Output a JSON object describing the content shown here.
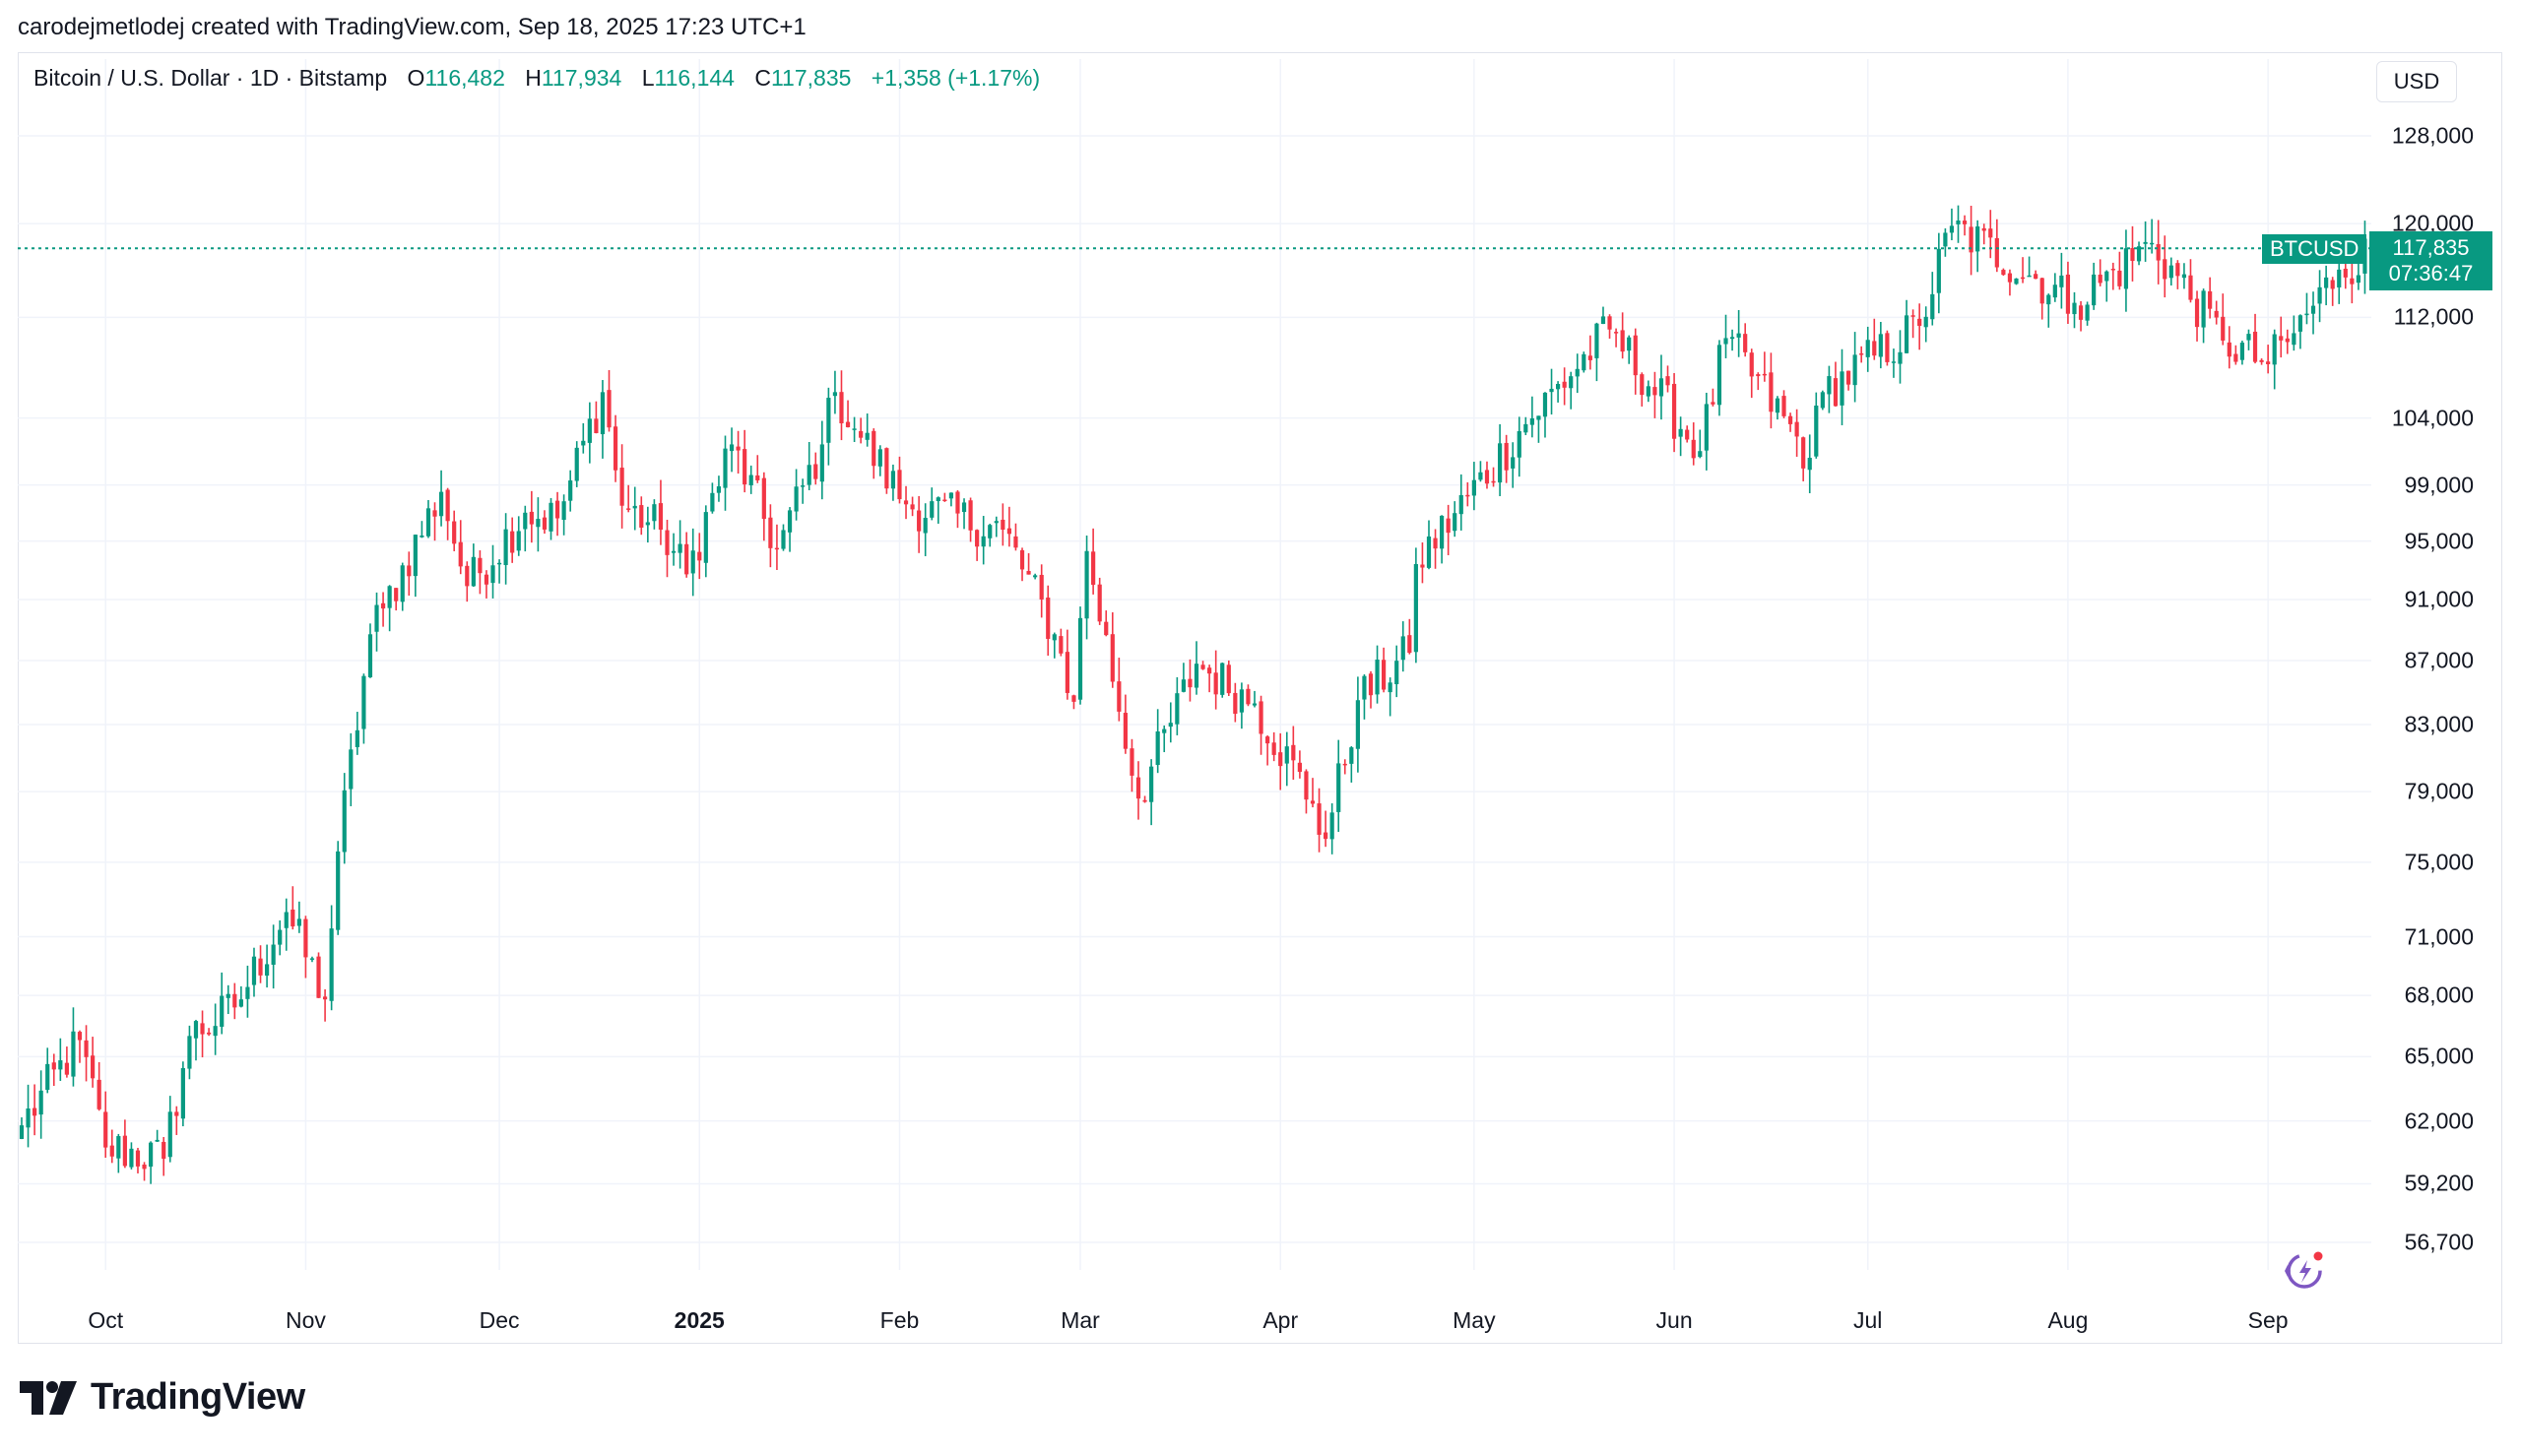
{
  "header": {
    "credit": "carodejmetlodej created with TradingView.com, Sep 18, 2025 17:23 UTC+1"
  },
  "legend": {
    "symbol": "Bitcoin / U.S. Dollar · 1D · Bitstamp",
    "o_label": "O",
    "o_value": "116,482",
    "h_label": "H",
    "h_value": "117,934",
    "l_label": "L",
    "l_value": "116,144",
    "c_label": "C",
    "c_value": "117,835",
    "change": "+1,358 (+1.17%)"
  },
  "currency_button": "USD",
  "last_price": {
    "symbol_tag": "BTCUSD",
    "price": "117,835",
    "countdown": "07:36:47"
  },
  "brand": {
    "name": "TradingView",
    "logo_icon": "tradingview-logo-icon"
  },
  "colors": {
    "up": "#089981",
    "down": "#f23645",
    "grid": "#f0f3fa",
    "price_line": "#089981",
    "assistant": "#7e57c2"
  },
  "chart_data": {
    "type": "candlestick",
    "symbol": "BTCUSD",
    "interval": "1D",
    "y_scale": "log",
    "ylim": [
      55000,
      135000
    ],
    "grid": true,
    "y_ticks": [
      128000,
      120000,
      112000,
      104000,
      99000,
      95000,
      91000,
      87000,
      83000,
      79000,
      75000,
      71000,
      68000,
      65000,
      62000,
      59200,
      56700
    ],
    "y_tick_labels": [
      "128,000",
      "120,000",
      "112,000",
      "104,000",
      "99,000",
      "95,000",
      "91,000",
      "87,000",
      "83,000",
      "79,000",
      "75,000",
      "71,000",
      "68,000",
      "65,000",
      "62,000",
      "59,200",
      "56,700"
    ],
    "x_ticks": [
      {
        "label": "Oct",
        "date": "2024-10-01",
        "bold": false
      },
      {
        "label": "Nov",
        "date": "2024-11-01",
        "bold": false
      },
      {
        "label": "Dec",
        "date": "2024-12-01",
        "bold": false
      },
      {
        "label": "2025",
        "date": "2025-01-01",
        "bold": true
      },
      {
        "label": "Feb",
        "date": "2025-02-01",
        "bold": false
      },
      {
        "label": "Mar",
        "date": "2025-03-01",
        "bold": false
      },
      {
        "label": "Apr",
        "date": "2025-04-01",
        "bold": false
      },
      {
        "label": "May",
        "date": "2025-05-01",
        "bold": false
      },
      {
        "label": "Jun",
        "date": "2025-06-01",
        "bold": false
      },
      {
        "label": "Jul",
        "date": "2025-07-01",
        "bold": false
      },
      {
        "label": "Aug",
        "date": "2025-08-01",
        "bold": false
      },
      {
        "label": "Sep",
        "date": "2025-09-01",
        "bold": false
      }
    ],
    "start_date": "2024-09-18",
    "closes": [
      {
        "date": "2024-09-18",
        "close": 61800
      },
      {
        "date": "2024-09-27",
        "close": 65800
      },
      {
        "date": "2024-10-01",
        "close": 60800
      },
      {
        "date": "2024-10-10",
        "close": 60300
      },
      {
        "date": "2024-10-14",
        "close": 66000
      },
      {
        "date": "2024-10-21",
        "close": 67400
      },
      {
        "date": "2024-10-29",
        "close": 72300
      },
      {
        "date": "2024-11-04",
        "close": 67800
      },
      {
        "date": "2024-11-06",
        "close": 75600
      },
      {
        "date": "2024-11-11",
        "close": 88700
      },
      {
        "date": "2024-11-13",
        "close": 90400
      },
      {
        "date": "2024-11-22",
        "close": 98500
      },
      {
        "date": "2024-11-26",
        "close": 91900
      },
      {
        "date": "2024-12-05",
        "close": 97000
      },
      {
        "date": "2024-12-10",
        "close": 96600
      },
      {
        "date": "2024-12-17",
        "close": 106000
      },
      {
        "date": "2024-12-20",
        "close": 97500
      },
      {
        "date": "2024-12-26",
        "close": 95800
      },
      {
        "date": "2024-12-30",
        "close": 92700
      },
      {
        "date": "2025-01-06",
        "close": 102000
      },
      {
        "date": "2025-01-13",
        "close": 94500
      },
      {
        "date": "2025-01-20",
        "close": 102000
      },
      {
        "date": "2025-01-22",
        "close": 106000
      },
      {
        "date": "2025-01-26",
        "close": 102500
      },
      {
        "date": "2025-02-02",
        "close": 97600
      },
      {
        "date": "2025-02-17",
        "close": 95800
      },
      {
        "date": "2025-02-25",
        "close": 88700
      },
      {
        "date": "2025-02-28",
        "close": 84400
      },
      {
        "date": "2025-03-02",
        "close": 94300
      },
      {
        "date": "2025-03-10",
        "close": 78600
      },
      {
        "date": "2025-03-19",
        "close": 86800
      },
      {
        "date": "2025-03-28",
        "close": 84300
      },
      {
        "date": "2025-04-06",
        "close": 78300
      },
      {
        "date": "2025-04-08",
        "close": 76300
      },
      {
        "date": "2025-04-13",
        "close": 84500
      },
      {
        "date": "2025-04-21",
        "close": 87500
      },
      {
        "date": "2025-04-22",
        "close": 93400
      },
      {
        "date": "2025-05-08",
        "close": 103000
      },
      {
        "date": "2025-05-22",
        "close": 111000
      },
      {
        "date": "2025-06-05",
        "close": 101500
      },
      {
        "date": "2025-06-09",
        "close": 110300
      },
      {
        "date": "2025-06-22",
        "close": 101000
      },
      {
        "date": "2025-06-24",
        "close": 106000
      },
      {
        "date": "2025-07-09",
        "close": 111300
      },
      {
        "date": "2025-07-14",
        "close": 119800
      },
      {
        "date": "2025-08-02",
        "close": 113200
      },
      {
        "date": "2025-08-14",
        "close": 118300
      },
      {
        "date": "2025-08-25",
        "close": 110100
      },
      {
        "date": "2025-09-01",
        "close": 108200
      },
      {
        "date": "2025-09-05",
        "close": 110700
      },
      {
        "date": "2025-09-12",
        "close": 116000
      },
      {
        "date": "2025-09-18",
        "close": 117835
      }
    ],
    "last_bar": {
      "date": "2025-09-18",
      "open": 116482,
      "high": 117934,
      "low": 116144,
      "close": 117835
    },
    "last_close": 117835
  }
}
